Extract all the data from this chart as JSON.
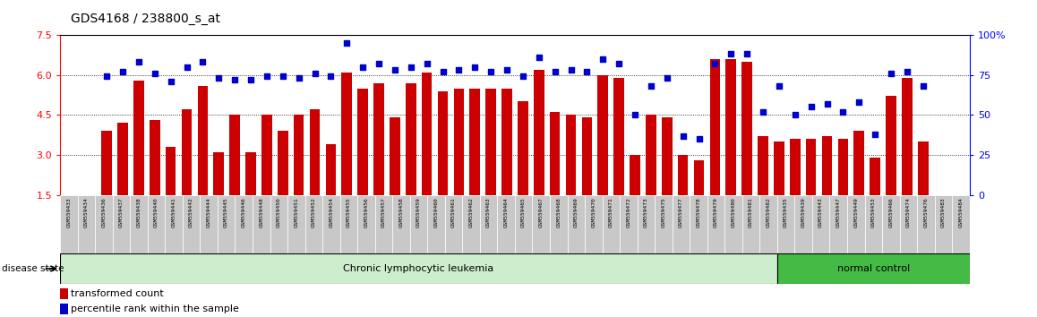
{
  "title": "GDS4168 / 238800_s_at",
  "samples": [
    "GSM559433",
    "GSM559434",
    "GSM559436",
    "GSM559437",
    "GSM559438",
    "GSM559440",
    "GSM559441",
    "GSM559442",
    "GSM559444",
    "GSM559445",
    "GSM559446",
    "GSM559448",
    "GSM559450",
    "GSM559451",
    "GSM559452",
    "GSM559454",
    "GSM559455",
    "GSM559456",
    "GSM559457",
    "GSM559458",
    "GSM559459",
    "GSM559460",
    "GSM559461",
    "GSM559462",
    "GSM559463",
    "GSM559464",
    "GSM559465",
    "GSM559467",
    "GSM559468",
    "GSM559469",
    "GSM559470",
    "GSM559471",
    "GSM559472",
    "GSM559473",
    "GSM559475",
    "GSM559477",
    "GSM559478",
    "GSM559479",
    "GSM559480",
    "GSM559481",
    "GSM559482",
    "GSM559435",
    "GSM559439",
    "GSM559443",
    "GSM559447",
    "GSM559449",
    "GSM559453",
    "GSM559466",
    "GSM559474",
    "GSM559476",
    "GSM559483",
    "GSM559484"
  ],
  "bar_values": [
    3.9,
    4.2,
    5.8,
    4.3,
    3.3,
    4.7,
    5.6,
    3.1,
    4.5,
    3.1,
    4.5,
    3.9,
    4.5,
    4.7,
    3.4,
    6.1,
    5.5,
    5.7,
    4.4,
    5.7,
    6.1,
    5.4,
    5.5,
    5.5,
    5.5,
    5.5,
    5.0,
    6.2,
    4.6,
    4.5,
    4.4,
    6.0,
    5.9,
    3.0,
    4.5,
    4.4,
    3.0,
    2.8,
    6.6,
    6.6,
    6.5,
    3.7,
    3.5,
    3.6,
    3.6,
    3.7,
    3.6,
    3.9,
    2.9,
    5.2,
    5.9,
    3.5
  ],
  "percentile_values": [
    74,
    77,
    83,
    76,
    71,
    80,
    83,
    73,
    72,
    72,
    74,
    74,
    73,
    76,
    74,
    95,
    80,
    82,
    78,
    80,
    82,
    77,
    78,
    80,
    77,
    78,
    74,
    86,
    77,
    78,
    77,
    85,
    82,
    50,
    68,
    73,
    37,
    35,
    82,
    88,
    88,
    52,
    68,
    50,
    55,
    57,
    52,
    58,
    38,
    76,
    77,
    68
  ],
  "ylim_left": [
    1.5,
    7.5
  ],
  "ylim_right": [
    0,
    100
  ],
  "yticks_left": [
    1.5,
    3.0,
    4.5,
    6.0,
    7.5
  ],
  "yticks_right": [
    0,
    25,
    50,
    75,
    100
  ],
  "bar_color": "#CC0000",
  "scatter_color": "#0000CC",
  "group_colors": {
    "Chronic lymphocytic leukemia": "#cceecc",
    "normal control": "#44bb44"
  },
  "label_row_bg": "#c8c8c8",
  "n_cll": 41,
  "n_total": 52,
  "bar_width": 0.65
}
